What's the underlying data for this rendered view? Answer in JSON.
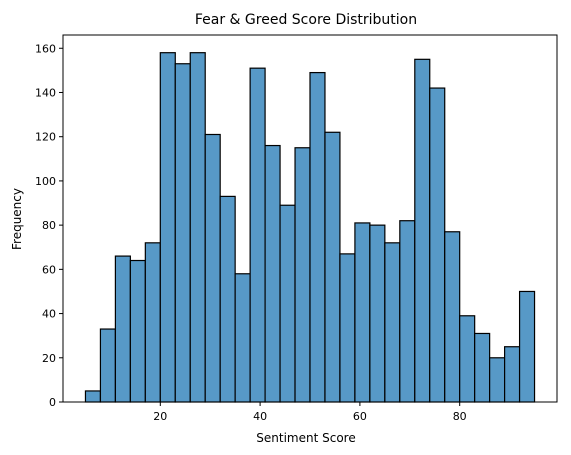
{
  "chart_data": {
    "type": "bar",
    "title": "Fear & Greed Score Distribution",
    "xlabel": "Sentiment Score",
    "ylabel": "Frequency",
    "bins": [
      [
        5,
        8,
        5
      ],
      [
        8,
        11,
        33
      ],
      [
        11,
        14,
        66
      ],
      [
        14,
        17,
        64
      ],
      [
        17,
        20,
        72
      ],
      [
        20,
        23,
        158
      ],
      [
        23,
        26,
        153
      ],
      [
        26,
        29,
        158
      ],
      [
        29,
        32,
        121
      ],
      [
        32,
        35,
        93
      ],
      [
        35,
        38,
        58
      ],
      [
        38,
        41,
        151
      ],
      [
        41,
        44,
        116
      ],
      [
        44,
        47,
        89
      ],
      [
        47,
        50,
        115
      ],
      [
        50,
        53,
        149
      ],
      [
        53,
        56,
        122
      ],
      [
        56,
        59,
        67
      ],
      [
        59,
        62,
        81
      ],
      [
        62,
        65,
        80
      ],
      [
        65,
        68,
        72
      ],
      [
        68,
        71,
        82
      ],
      [
        71,
        74,
        155
      ],
      [
        74,
        77,
        142
      ],
      [
        77,
        80,
        77
      ],
      [
        80,
        83,
        39
      ],
      [
        83,
        86,
        31
      ],
      [
        86,
        89,
        20
      ],
      [
        89,
        92,
        25
      ],
      [
        92,
        95,
        50
      ]
    ],
    "xlim": [
      0.5,
      99.5
    ],
    "ylim": [
      0,
      166
    ],
    "xticks": [
      20,
      40,
      60,
      80
    ],
    "yticks": [
      0,
      20,
      40,
      60,
      80,
      100,
      120,
      140,
      160
    ],
    "grid": false,
    "colors": {
      "bar_fill": "#5799c7",
      "bar_edge": "#000000"
    }
  }
}
